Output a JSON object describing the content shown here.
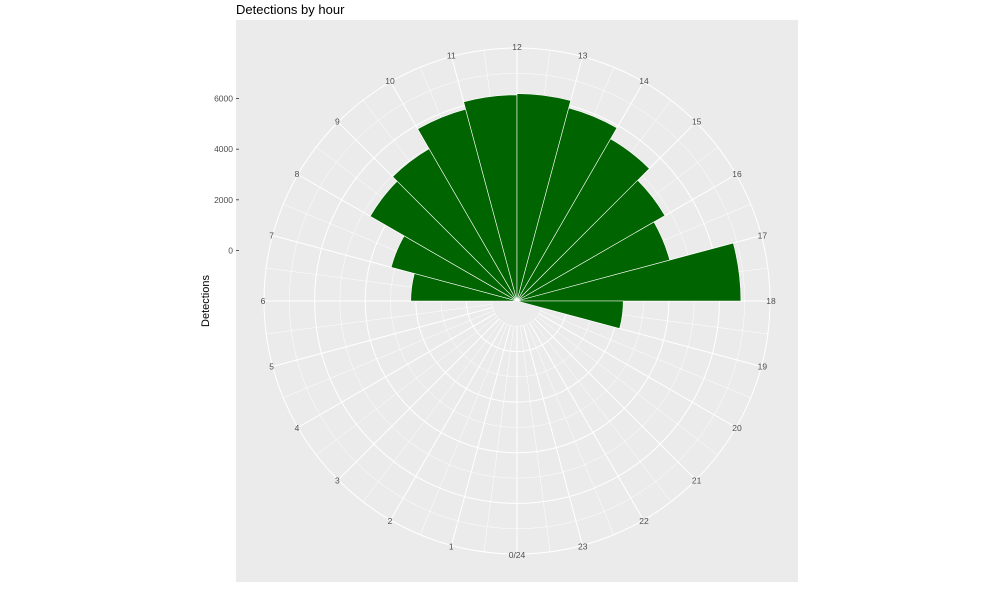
{
  "chart_data": {
    "type": "bar",
    "coord": "polar",
    "title": "Detections by hour",
    "xlabel": "",
    "ylabel": "Detections",
    "categories": [
      6,
      7,
      8,
      9,
      10,
      11,
      12,
      13,
      14,
      15,
      16,
      17,
      18
    ],
    "values": [
      2200,
      3150,
      4700,
      4950,
      5850,
      6150,
      6200,
      5900,
      5400,
      4750,
      4250,
      6850,
      2200
    ],
    "hour_labels": [
      "0/24",
      "1",
      "2",
      "3",
      "4",
      "5",
      "6",
      "7",
      "8",
      "9",
      "10",
      "11",
      "12",
      "13",
      "14",
      "15",
      "16",
      "17",
      "18",
      "19",
      "20",
      "21",
      "22",
      "23"
    ],
    "y_ticks": [
      0,
      2000,
      4000,
      6000
    ],
    "y_tick_labels": [
      "0",
      "2000",
      "4000",
      "6000"
    ],
    "ylim": [
      -2000,
      8000
    ],
    "bar_color": "#006400",
    "panel_background": "#ebebeb",
    "grid_color": "#ffffff",
    "grid": true,
    "legend": "none"
  }
}
